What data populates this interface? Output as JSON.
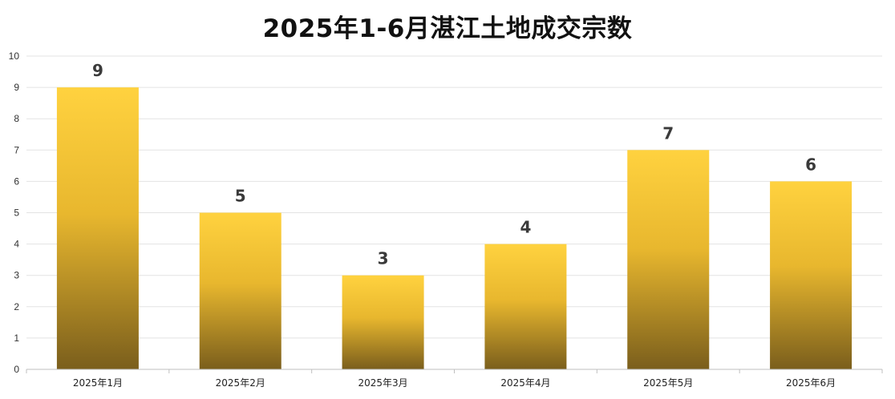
{
  "chart_data": {
    "type": "bar",
    "title": "2025年1-6月湛江土地成交宗数",
    "categories": [
      "2025年1月",
      "2025年2月",
      "2025年3月",
      "2025年4月",
      "2025年5月",
      "2025年6月"
    ],
    "values": [
      9,
      5,
      3,
      4,
      7,
      6
    ],
    "data_labels": [
      "9",
      "5",
      "3",
      "4",
      "7",
      "6"
    ],
    "xlabel": "",
    "ylabel": "",
    "ylim": [
      0,
      10
    ],
    "yticks": [
      "0",
      "1",
      "2",
      "3",
      "4",
      "5",
      "6",
      "7",
      "8",
      "9",
      "10"
    ],
    "grid": true,
    "legend": "none",
    "colors": {
      "bar_top": "#FFD23F",
      "bar_mid": "#E8B72E",
      "bar_bottom": "#7A5E1C",
      "grid": "#E3E3E3",
      "axis": "#BFBFBF"
    }
  }
}
